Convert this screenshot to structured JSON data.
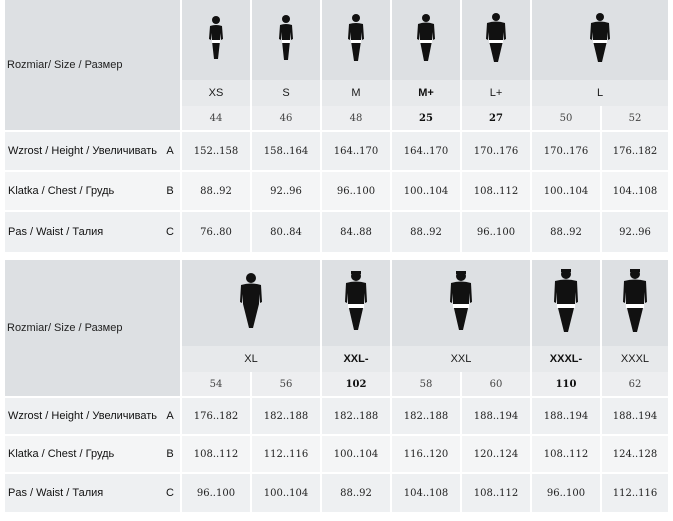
{
  "header_label": "Rozmiar/ Size / Размер",
  "header_label_2": "Rozmiar/ Size / Размер",
  "row_labels": {
    "height": "Wzrost / Height / Увеличивать",
    "chest": "Klatka / Chest / Грудь",
    "waist": "Pas / Waist / Талия"
  },
  "row_letters": {
    "height": "A",
    "chest": "B",
    "waist": "C"
  },
  "table1": {
    "sizes": [
      "XS",
      "S",
      "M",
      "M+",
      "L+",
      "L"
    ],
    "codes": [
      "44",
      "46",
      "48",
      "25",
      "27",
      "50",
      "52"
    ],
    "height": [
      "152..158",
      "158..164",
      "164..170",
      "164..170",
      "170..176",
      "170..176",
      "176..182"
    ],
    "chest": [
      "88..92",
      "92..96",
      "96..100",
      "100..104",
      "108..112",
      "100..104",
      "104..108"
    ],
    "waist": [
      "76..80",
      "80..84",
      "84..88",
      "88..92",
      "96..100",
      "88..92",
      "92..96"
    ]
  },
  "table2": {
    "sizes": [
      "XL",
      "XXL-",
      "XXL",
      "XXXL-",
      "XXXL"
    ],
    "codes": [
      "54",
      "56",
      "102",
      "58",
      "60",
      "110",
      "62"
    ],
    "height": [
      "176..182",
      "182..188",
      "182..188",
      "182..188",
      "188..194",
      "188..194",
      "188..194"
    ],
    "chest": [
      "108..112",
      "112..116",
      "100..104",
      "116..120",
      "120..124",
      "108..112",
      "124..128"
    ],
    "waist": [
      "96..100",
      "100..104",
      "88..92",
      "104..108",
      "108..112",
      "96..100",
      "112..116"
    ]
  },
  "figure_icon": "model-figure-icon"
}
